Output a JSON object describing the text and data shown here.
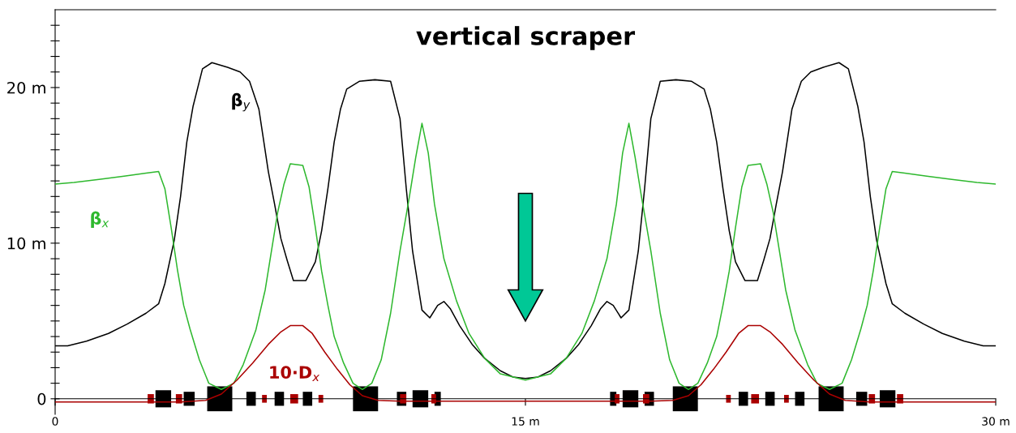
{
  "chart_data": {
    "type": "line",
    "title": "vertical scraper",
    "xlim": [
      0,
      30
    ],
    "xticks": [
      0,
      {
        "value": 15,
        "label": "15 m"
      },
      {
        "value": 30,
        "label": "30 m"
      }
    ],
    "ylim": [
      -1,
      25
    ],
    "yticks": [
      0,
      {
        "value": 1,
        "label": null
      },
      {
        "value": 2,
        "label": null
      },
      {
        "value": 3,
        "label": null
      },
      {
        "value": 4,
        "label": null
      },
      {
        "value": 5,
        "label": null
      },
      {
        "value": 6,
        "label": null
      },
      {
        "value": 7,
        "label": null
      },
      {
        "value": 8,
        "label": null
      },
      {
        "value": 9,
        "label": null
      },
      {
        "value": 10,
        "label": "10 m"
      },
      {
        "value": 11,
        "label": null
      },
      {
        "value": 12,
        "label": null
      },
      {
        "value": 13,
        "label": null
      },
      {
        "value": 14,
        "label": null
      },
      {
        "value": 15,
        "label": null
      },
      {
        "value": 16,
        "label": null
      },
      {
        "value": 17,
        "label": null
      },
      {
        "value": 18,
        "label": null
      },
      {
        "value": 19,
        "label": null
      },
      {
        "value": 20,
        "label": "20 m"
      },
      {
        "value": 21,
        "label": null
      },
      {
        "value": 22,
        "label": null
      },
      {
        "value": 23,
        "label": null
      },
      {
        "value": 24,
        "label": null
      }
    ],
    "line_style": "solid",
    "grid": false,
    "legend": false,
    "series": [
      {
        "name": "β$_{y}$",
        "color": "#000000",
        "x": [
          0,
          0.4,
          1.0,
          1.7,
          2.3,
          2.9,
          3.3,
          3.5,
          3.8,
          4.0,
          4.2,
          4.4,
          4.7,
          5.0,
          5.5,
          5.9,
          6.2,
          6.5,
          6.8,
          7.0,
          7.2,
          7.4,
          7.6,
          8.0,
          8.3,
          8.5,
          8.7,
          8.9,
          9.1,
          9.3,
          9.7,
          10.2,
          10.7,
          11.0,
          11.2,
          11.4,
          11.7,
          11.95,
          12.2,
          12.4,
          12.6,
          12.9,
          13.3,
          13.7,
          14.2,
          14.6,
          15.0,
          15.4,
          15.8,
          16.3,
          16.7,
          17.1,
          17.4,
          17.6,
          17.8,
          18.05,
          18.3,
          18.6,
          18.8,
          19.0,
          19.3,
          19.8,
          20.3,
          20.7,
          20.9,
          21.1,
          21.3,
          21.5,
          21.7,
          22.0,
          22.4,
          22.6,
          22.8,
          23.0,
          23.2,
          23.5,
          23.8,
          24.1,
          24.5,
          25.0,
          25.3,
          25.6,
          25.8,
          26.0,
          26.2,
          26.5,
          26.7,
          27.1,
          27.7,
          28.3,
          29.0,
          29.6,
          30
        ],
        "values": [
          3.4,
          3.4,
          3.7,
          4.2,
          4.8,
          5.5,
          6.1,
          7.4,
          10.2,
          13.0,
          16.5,
          18.8,
          21.2,
          21.6,
          21.3,
          21.0,
          20.4,
          18.6,
          14.6,
          12.5,
          10.3,
          8.9,
          7.6,
          7.6,
          8.8,
          10.8,
          13.5,
          16.5,
          18.6,
          19.9,
          20.4,
          20.5,
          20.4,
          18.0,
          13.5,
          9.5,
          5.7,
          5.2,
          6.0,
          6.25,
          5.8,
          4.7,
          3.5,
          2.6,
          1.8,
          1.4,
          1.3,
          1.4,
          1.8,
          2.6,
          3.5,
          4.7,
          5.8,
          6.25,
          6.0,
          5.2,
          5.7,
          9.5,
          13.5,
          18.0,
          20.4,
          20.5,
          20.4,
          19.9,
          18.6,
          16.5,
          13.5,
          10.8,
          8.8,
          7.6,
          7.6,
          8.9,
          10.3,
          12.5,
          14.6,
          18.6,
          20.4,
          21.0,
          21.3,
          21.6,
          21.2,
          18.8,
          16.5,
          13.0,
          10.2,
          7.4,
          6.1,
          5.5,
          4.8,
          4.2,
          3.7,
          3.4,
          3.4
        ]
      },
      {
        "name": "β$_{x}$",
        "color": "#2eb82e",
        "x": [
          0,
          0.6,
          1.4,
          2.2,
          2.9,
          3.3,
          3.5,
          3.7,
          3.9,
          4.1,
          4.3,
          4.6,
          4.9,
          5.3,
          5.7,
          6.0,
          6.4,
          6.7,
          6.9,
          7.1,
          7.3,
          7.5,
          7.9,
          8.1,
          8.3,
          8.5,
          8.7,
          8.9,
          9.2,
          9.5,
          9.8,
          10.1,
          10.4,
          10.7,
          11.0,
          11.3,
          11.5,
          11.7,
          11.9,
          12.1,
          12.4,
          12.8,
          13.2,
          13.7,
          14.2,
          15.0,
          15.8,
          16.3,
          16.8,
          17.2,
          17.6,
          17.9,
          18.1,
          18.3,
          18.5,
          18.7,
          19.0,
          19.3,
          19.6,
          19.9,
          20.2,
          20.5,
          20.8,
          21.1,
          21.3,
          21.5,
          21.7,
          21.9,
          22.1,
          22.5,
          22.7,
          22.9,
          23.1,
          23.3,
          23.6,
          24.0,
          24.3,
          24.7,
          25.1,
          25.4,
          25.7,
          25.9,
          26.1,
          26.3,
          26.5,
          26.7,
          27.1,
          27.8,
          28.6,
          29.4,
          30
        ],
        "values": [
          13.8,
          13.9,
          14.1,
          14.3,
          14.5,
          14.6,
          13.5,
          11.0,
          8.3,
          6.0,
          4.5,
          2.5,
          1.0,
          0.6,
          1.0,
          2.2,
          4.4,
          7.0,
          9.5,
          12.0,
          13.8,
          15.1,
          15.0,
          13.6,
          11.0,
          8.2,
          6.0,
          4.0,
          2.3,
          1.0,
          0.6,
          1.0,
          2.5,
          5.5,
          9.5,
          13.0,
          15.5,
          17.7,
          15.8,
          12.5,
          9.0,
          6.3,
          4.2,
          2.6,
          1.6,
          1.2,
          1.6,
          2.6,
          4.2,
          6.3,
          9.0,
          12.5,
          15.8,
          17.7,
          15.5,
          13.0,
          9.5,
          5.5,
          2.5,
          1.0,
          0.6,
          1.0,
          2.3,
          4.0,
          6.0,
          8.2,
          11.0,
          13.6,
          15.0,
          15.1,
          13.8,
          12.0,
          9.5,
          7.0,
          4.4,
          2.2,
          1.0,
          0.6,
          1.0,
          2.5,
          4.5,
          6.0,
          8.3,
          11.0,
          13.5,
          14.6,
          14.5,
          14.3,
          14.1,
          13.9,
          13.8
        ]
      },
      {
        "name": "10·D$_{x}$",
        "color": "#aa0000",
        "x": [
          0,
          1,
          2,
          3,
          4,
          4.8,
          5.3,
          5.8,
          6.3,
          6.8,
          7.2,
          7.5,
          7.9,
          8.2,
          8.6,
          9.0,
          9.4,
          9.8,
          10.3,
          11,
          12,
          13,
          14,
          15,
          16,
          17,
          18,
          19,
          19.7,
          20.2,
          20.6,
          21.0,
          21.4,
          21.8,
          22.1,
          22.5,
          22.8,
          23.2,
          23.7,
          24.2,
          24.7,
          25.2,
          26,
          27,
          28,
          29,
          30
        ],
        "values": [
          -0.2,
          -0.2,
          -0.2,
          -0.2,
          -0.2,
          -0.1,
          0.3,
          1.2,
          2.3,
          3.5,
          4.3,
          4.7,
          4.7,
          4.2,
          3.0,
          1.9,
          0.9,
          0.2,
          -0.1,
          -0.15,
          -0.15,
          -0.15,
          -0.15,
          -0.15,
          -0.15,
          -0.15,
          -0.15,
          -0.15,
          -0.1,
          0.2,
          0.9,
          1.9,
          3.0,
          4.2,
          4.7,
          4.7,
          4.3,
          3.5,
          2.3,
          1.2,
          0.3,
          -0.1,
          -0.2,
          -0.2,
          -0.2,
          -0.2,
          -0.2
        ]
      }
    ]
  }
}
